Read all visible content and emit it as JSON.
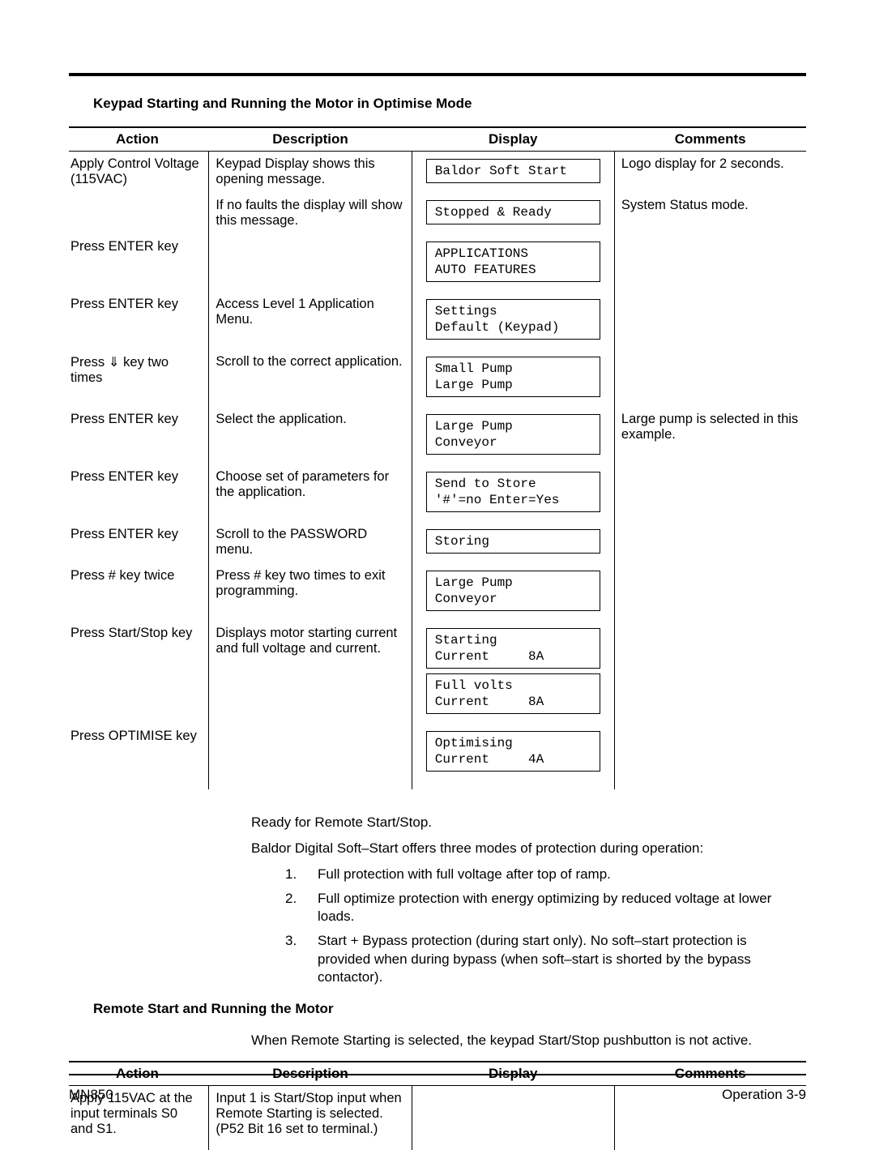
{
  "section1_title": "Keypad Starting and Running the Motor in Optimise Mode",
  "headers": {
    "action": "Action",
    "description": "Description",
    "display": "Display",
    "comments": "Comments"
  },
  "table1": [
    {
      "action": "Apply Control Voltage (115VAC)",
      "desc": "Keypad Display shows this opening message.",
      "display": [
        "Baldor Soft Start"
      ],
      "comments": "Logo display for 2 seconds."
    },
    {
      "action": "",
      "desc": "If no faults the display will show this message.",
      "display": [
        "Stopped & Ready"
      ],
      "comments": "System Status mode."
    },
    {
      "action": "Press ENTER key",
      "desc": "",
      "display": [
        "APPLICATIONS\nAUTO FEATURES"
      ],
      "comments": ""
    },
    {
      "action": "Press ENTER key",
      "desc": "Access Level 1 Application Menu.",
      "display": [
        "Settings\nDefault (Keypad)"
      ],
      "comments": ""
    },
    {
      "action": "Press ⇓ key two times",
      "desc": "Scroll to the correct application.",
      "display": [
        "Small Pump\nLarge Pump"
      ],
      "comments": ""
    },
    {
      "action": "Press ENTER key",
      "desc": "Select the application.",
      "display": [
        "Large Pump\nConveyor"
      ],
      "comments": "Large pump is selected in this example."
    },
    {
      "action": "Press ENTER key",
      "desc": "Choose set of parameters for the application.",
      "display": [
        "Send to Store\n'#'=no Enter=Yes"
      ],
      "comments": ""
    },
    {
      "action": "Press ENTER key",
      "desc": "Scroll to the PASSWORD menu.",
      "display": [
        "Storing"
      ],
      "comments": ""
    },
    {
      "action": "Press # key twice",
      "desc": "Press # key two times to exit programming.",
      "display": [
        "Large Pump\nConveyor"
      ],
      "comments": ""
    },
    {
      "action": "Press Start/Stop key",
      "desc": "Displays motor starting current and full voltage and current.",
      "display": [
        "Starting\nCurrent     8A",
        "Full volts\nCurrent     8A"
      ],
      "comments": ""
    },
    {
      "action": "Press OPTIMISE key",
      "desc": "",
      "display": [
        "Optimising\nCurrent     4A"
      ],
      "comments": ""
    }
  ],
  "body": {
    "p1": "Ready for Remote Start/Stop.",
    "p2": "Baldor Digital Soft–Start offers three modes of protection during operation:",
    "list": [
      "Full protection with full voltage after top of ramp.",
      "Full optimize protection with energy optimizing by reduced voltage at lower loads.",
      "Start + Bypass protection (during start only).  No soft–start protection is provided when during bypass (when soft–start is shorted by the bypass contactor)."
    ]
  },
  "section2_title": "Remote Start and Running the Motor",
  "section2_intro": "When Remote Starting is selected, the keypad Start/Stop pushbutton is not active.",
  "table2": [
    {
      "action": "Apply 115VAC at the input terminals S0 and S1.",
      "desc": "Input 1 is Start/Stop input when Remote Starting is selected. (P52 Bit 16 set to terminal.)",
      "display": [],
      "comments": ""
    }
  ],
  "footer": {
    "left": "MN850",
    "right": "Operation 3-9"
  }
}
